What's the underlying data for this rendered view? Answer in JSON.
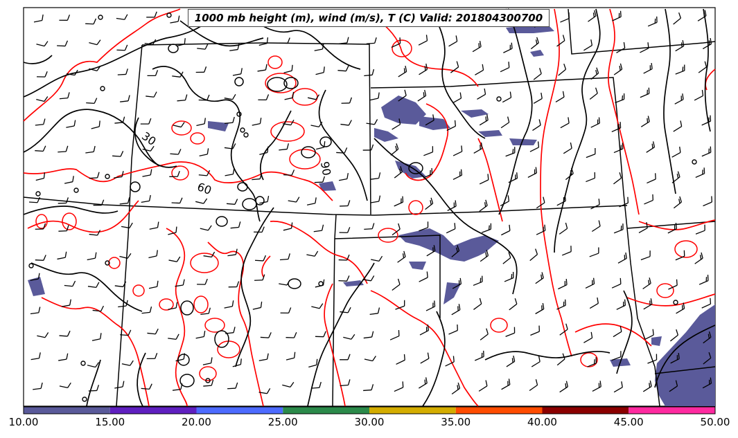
{
  "title": "1000 mb height (m), wind (m/s), T (C) Valid: 201804300700",
  "contour_labels": [
    "30",
    "60",
    "90"
  ],
  "colorbar": {
    "labels": [
      "10.00",
      "15.00",
      "20.00",
      "25.00",
      "30.00",
      "35.00",
      "40.00",
      "45.00",
      "50.00"
    ],
    "colors": [
      "#5a5a9a",
      "#5f1fc0",
      "#4d6bff",
      "#2b8a4a",
      "#d4ad00",
      "#ff4c00",
      "#8b0000",
      "#ff2aa0"
    ]
  },
  "colors": {
    "height_contour": "#000000",
    "temperature_contour": "#ff0000",
    "shaded_field": "#5a5a9a",
    "state_border": "#000000"
  }
}
